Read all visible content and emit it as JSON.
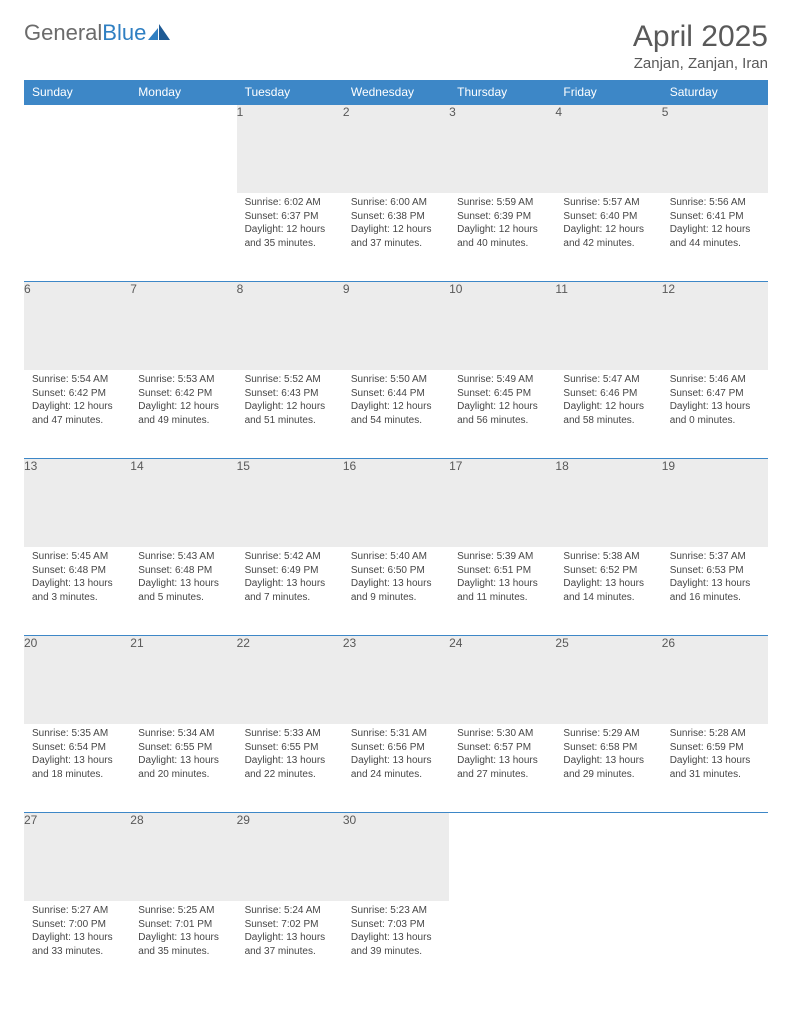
{
  "brand": {
    "part1": "General",
    "part2": "Blue"
  },
  "title": "April 2025",
  "location": "Zanjan, Zanjan, Iran",
  "colors": {
    "header_bg": "#3d87c7",
    "header_text": "#ffffff",
    "daynum_bg": "#ececec",
    "text": "#595959",
    "cell_text": "#464646",
    "rule": "#3d87c7"
  },
  "weekdays": [
    "Sunday",
    "Monday",
    "Tuesday",
    "Wednesday",
    "Thursday",
    "Friday",
    "Saturday"
  ],
  "weeks": [
    [
      null,
      null,
      {
        "n": "1",
        "sunrise": "6:02 AM",
        "sunset": "6:37 PM",
        "daylight": "12 hours and 35 minutes."
      },
      {
        "n": "2",
        "sunrise": "6:00 AM",
        "sunset": "6:38 PM",
        "daylight": "12 hours and 37 minutes."
      },
      {
        "n": "3",
        "sunrise": "5:59 AM",
        "sunset": "6:39 PM",
        "daylight": "12 hours and 40 minutes."
      },
      {
        "n": "4",
        "sunrise": "5:57 AM",
        "sunset": "6:40 PM",
        "daylight": "12 hours and 42 minutes."
      },
      {
        "n": "5",
        "sunrise": "5:56 AM",
        "sunset": "6:41 PM",
        "daylight": "12 hours and 44 minutes."
      }
    ],
    [
      {
        "n": "6",
        "sunrise": "5:54 AM",
        "sunset": "6:42 PM",
        "daylight": "12 hours and 47 minutes."
      },
      {
        "n": "7",
        "sunrise": "5:53 AM",
        "sunset": "6:42 PM",
        "daylight": "12 hours and 49 minutes."
      },
      {
        "n": "8",
        "sunrise": "5:52 AM",
        "sunset": "6:43 PM",
        "daylight": "12 hours and 51 minutes."
      },
      {
        "n": "9",
        "sunrise": "5:50 AM",
        "sunset": "6:44 PM",
        "daylight": "12 hours and 54 minutes."
      },
      {
        "n": "10",
        "sunrise": "5:49 AM",
        "sunset": "6:45 PM",
        "daylight": "12 hours and 56 minutes."
      },
      {
        "n": "11",
        "sunrise": "5:47 AM",
        "sunset": "6:46 PM",
        "daylight": "12 hours and 58 minutes."
      },
      {
        "n": "12",
        "sunrise": "5:46 AM",
        "sunset": "6:47 PM",
        "daylight": "13 hours and 0 minutes."
      }
    ],
    [
      {
        "n": "13",
        "sunrise": "5:45 AM",
        "sunset": "6:48 PM",
        "daylight": "13 hours and 3 minutes."
      },
      {
        "n": "14",
        "sunrise": "5:43 AM",
        "sunset": "6:48 PM",
        "daylight": "13 hours and 5 minutes."
      },
      {
        "n": "15",
        "sunrise": "5:42 AM",
        "sunset": "6:49 PM",
        "daylight": "13 hours and 7 minutes."
      },
      {
        "n": "16",
        "sunrise": "5:40 AM",
        "sunset": "6:50 PM",
        "daylight": "13 hours and 9 minutes."
      },
      {
        "n": "17",
        "sunrise": "5:39 AM",
        "sunset": "6:51 PM",
        "daylight": "13 hours and 11 minutes."
      },
      {
        "n": "18",
        "sunrise": "5:38 AM",
        "sunset": "6:52 PM",
        "daylight": "13 hours and 14 minutes."
      },
      {
        "n": "19",
        "sunrise": "5:37 AM",
        "sunset": "6:53 PM",
        "daylight": "13 hours and 16 minutes."
      }
    ],
    [
      {
        "n": "20",
        "sunrise": "5:35 AM",
        "sunset": "6:54 PM",
        "daylight": "13 hours and 18 minutes."
      },
      {
        "n": "21",
        "sunrise": "5:34 AM",
        "sunset": "6:55 PM",
        "daylight": "13 hours and 20 minutes."
      },
      {
        "n": "22",
        "sunrise": "5:33 AM",
        "sunset": "6:55 PM",
        "daylight": "13 hours and 22 minutes."
      },
      {
        "n": "23",
        "sunrise": "5:31 AM",
        "sunset": "6:56 PM",
        "daylight": "13 hours and 24 minutes."
      },
      {
        "n": "24",
        "sunrise": "5:30 AM",
        "sunset": "6:57 PM",
        "daylight": "13 hours and 27 minutes."
      },
      {
        "n": "25",
        "sunrise": "5:29 AM",
        "sunset": "6:58 PM",
        "daylight": "13 hours and 29 minutes."
      },
      {
        "n": "26",
        "sunrise": "5:28 AM",
        "sunset": "6:59 PM",
        "daylight": "13 hours and 31 minutes."
      }
    ],
    [
      {
        "n": "27",
        "sunrise": "5:27 AM",
        "sunset": "7:00 PM",
        "daylight": "13 hours and 33 minutes."
      },
      {
        "n": "28",
        "sunrise": "5:25 AM",
        "sunset": "7:01 PM",
        "daylight": "13 hours and 35 minutes."
      },
      {
        "n": "29",
        "sunrise": "5:24 AM",
        "sunset": "7:02 PM",
        "daylight": "13 hours and 37 minutes."
      },
      {
        "n": "30",
        "sunrise": "5:23 AM",
        "sunset": "7:03 PM",
        "daylight": "13 hours and 39 minutes."
      },
      null,
      null,
      null
    ]
  ],
  "labels": {
    "sunrise": "Sunrise:",
    "sunset": "Sunset:",
    "daylight": "Daylight:"
  }
}
